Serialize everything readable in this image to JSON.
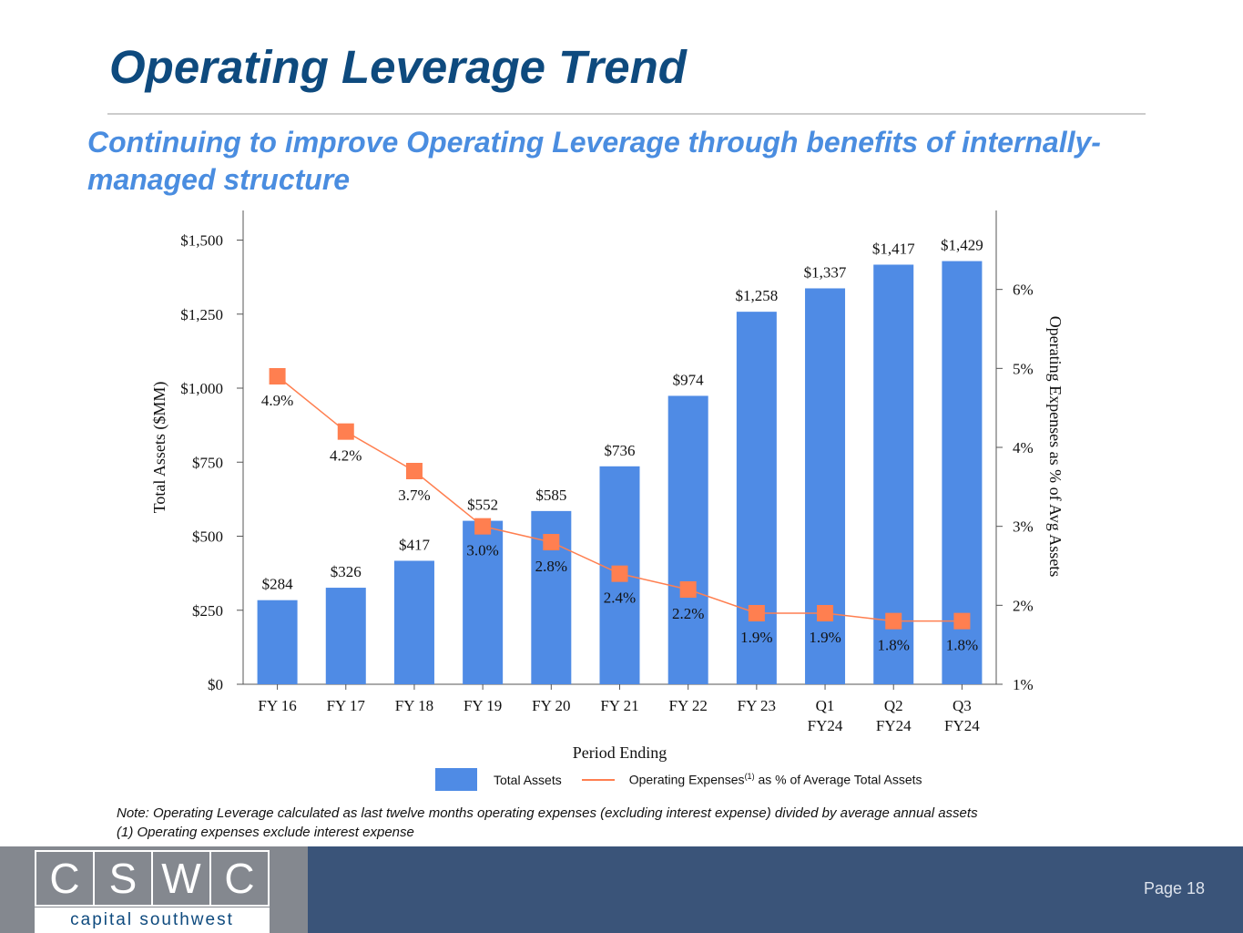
{
  "header": {
    "title": "Operating Leverage Trend",
    "subtitle": "Continuing to improve Operating Leverage through benefits of internally-managed structure"
  },
  "chart_data": {
    "type": "bar",
    "categories": [
      [
        "FY 16"
      ],
      [
        "FY 17"
      ],
      [
        "FY 18"
      ],
      [
        "FY 19"
      ],
      [
        "FY 20"
      ],
      [
        "FY 21"
      ],
      [
        "FY 22"
      ],
      [
        "FY 23"
      ],
      [
        "Q1",
        "FY24"
      ],
      [
        "Q2",
        "FY24"
      ],
      [
        "Q3",
        "FY24"
      ]
    ],
    "series": [
      {
        "name": "Total Assets",
        "type": "bar",
        "axis": "left",
        "color": "#4f8be5",
        "values": [
          284,
          326,
          417,
          552,
          585,
          736,
          974,
          1258,
          1337,
          1417,
          1429
        ],
        "labels": [
          "$284",
          "$326",
          "$417",
          "$552",
          "$585",
          "$736",
          "$974",
          "$1,258",
          "$1,337",
          "$1,417",
          "$1,429"
        ]
      },
      {
        "name": "Operating Expenses as % of Average Total Assets",
        "type": "line",
        "axis": "right",
        "color": "#ff7f50",
        "values": [
          4.9,
          4.2,
          3.7,
          3.0,
          2.8,
          2.4,
          2.2,
          1.9,
          1.9,
          1.8,
          1.8
        ],
        "labels": [
          "4.9%",
          "4.2%",
          "3.7%",
          "3.0%",
          "2.8%",
          "2.4%",
          "2.2%",
          "1.9%",
          "1.9%",
          "1.8%",
          "1.8%"
        ]
      }
    ],
    "xlabel": "Period Ending",
    "ylabel": "Total Assets ($MM)",
    "ylabel_right": "Operating Expenses as % of Avg Assets",
    "ylim": [
      0,
      1600
    ],
    "yticks": [
      0,
      250,
      500,
      750,
      1000,
      1250,
      1500
    ],
    "ytick_labels": [
      "$0",
      "$250",
      "$500",
      "$750",
      "$1,000",
      "$1,250",
      "$1,500"
    ],
    "ylim_right": [
      1,
      7
    ],
    "yticks_right": [
      1,
      2,
      3,
      4,
      5,
      6
    ],
    "ytick_labels_right": [
      "1%",
      "2%",
      "3%",
      "4%",
      "5%",
      "6%"
    ],
    "grid": false,
    "legend": "bottom"
  },
  "legend": {
    "bar_label": "Total Assets",
    "line_label_pre": "Operating Expenses",
    "line_label_sup": "(1)",
    "line_label_post": " as % of Average Total Assets"
  },
  "notes": {
    "line1": "Note: Operating Leverage calculated as last twelve months operating expenses (excluding interest expense) divided by average annual assets",
    "line2": "(1) Operating expenses exclude interest expense"
  },
  "footer": {
    "logo_letters": [
      "C",
      "S",
      "W",
      "C"
    ],
    "logo_subtitle": "capital southwest",
    "page": "Page 18"
  }
}
